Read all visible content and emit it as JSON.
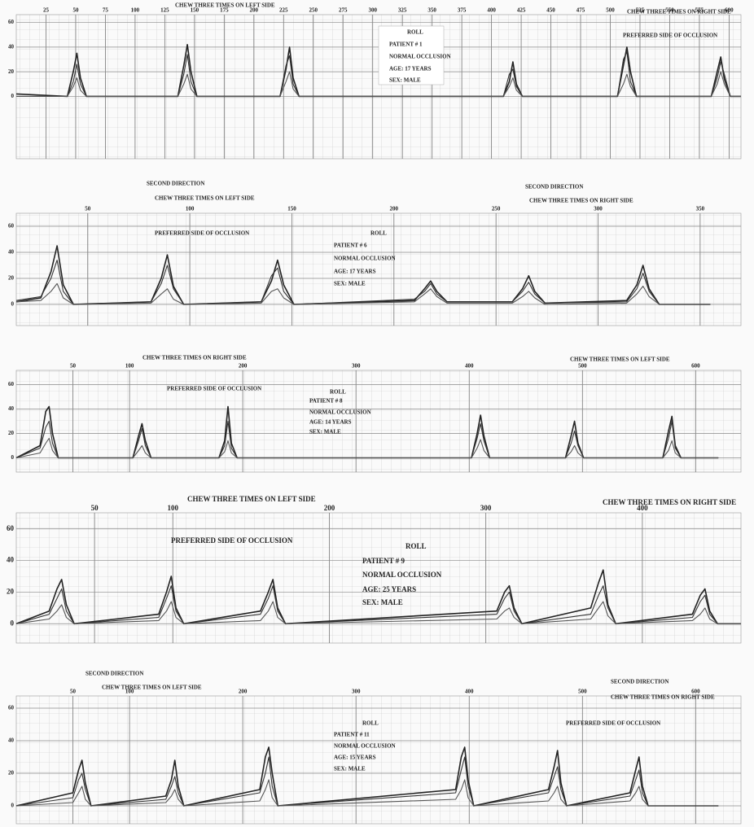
{
  "chart_data": [
    {
      "type": "line",
      "xlim": [
        0,
        610
      ],
      "ylim": [
        -5,
        65
      ],
      "xticks": [
        25,
        50,
        75,
        100,
        125,
        150,
        175,
        200,
        225,
        250,
        275,
        300,
        325,
        350,
        375,
        400,
        425,
        450,
        475,
        500,
        525,
        550,
        575,
        600
      ],
      "yticks": [
        0,
        20,
        40,
        60
      ],
      "annotations": [
        "CHEW THREE TIMES ON LEFT SIDE",
        "CHEW THREE TIMES ON RIGHT SIDE",
        "PREFERRED SIDE OF OCCLUSION",
        "ROLL",
        "PATIENT # 1",
        "NORMAL OCCLUSION",
        "AGE: 17 YEARS",
        "SEX: MALE"
      ],
      "x": [
        0,
        43,
        48,
        51,
        54,
        59,
        136,
        141,
        144,
        147,
        152,
        222,
        227,
        230,
        233,
        238,
        410,
        415,
        418,
        421,
        426,
        506,
        511,
        514,
        517,
        522,
        585,
        590,
        593,
        596,
        601,
        610
      ],
      "series": [
        {
          "color": "#222222",
          "values": [
            2,
            0,
            20,
            35,
            15,
            0,
            0,
            25,
            42,
            20,
            0,
            0,
            22,
            40,
            15,
            0,
            0,
            12,
            28,
            10,
            0,
            0,
            25,
            40,
            20,
            0,
            0,
            20,
            32,
            14,
            0,
            0
          ]
        },
        {
          "color": "#333333",
          "values": [
            0,
            0,
            12,
            26,
            10,
            0,
            0,
            18,
            34,
            12,
            0,
            0,
            25,
            33,
            10,
            0,
            0,
            18,
            22,
            8,
            0,
            0,
            30,
            36,
            12,
            0,
            0,
            15,
            28,
            18,
            0,
            0
          ]
        },
        {
          "color": "#555555",
          "values": [
            0,
            0,
            8,
            15,
            5,
            0,
            0,
            10,
            18,
            6,
            0,
            0,
            12,
            20,
            6,
            0,
            0,
            8,
            15,
            5,
            0,
            0,
            10,
            18,
            8,
            0,
            0,
            10,
            20,
            10,
            0,
            0
          ]
        }
      ]
    },
    {
      "type": "line",
      "xlim": [
        15,
        370
      ],
      "ylim": [
        -5,
        65
      ],
      "xticks": [
        50,
        100,
        150,
        200,
        250,
        300,
        350
      ],
      "yticks": [
        0,
        20,
        40,
        60
      ],
      "annotations": [
        "SECOND DIRECTION",
        "CHEW THREE TIMES ON LEFT SIDE",
        "PREFERRED SIDE OF OCCLUSION",
        "SECOND DIRECTION",
        "CHEW THREE TIMES ON RIGHT SIDE",
        "ROLL",
        "PATIENT # 6",
        "NORMAL OCCLUSION",
        "AGE: 17 YEARS",
        "SEX: MALE"
      ],
      "x": [
        15,
        27,
        32,
        35,
        38,
        43,
        81,
        86,
        89,
        92,
        97,
        135,
        140,
        143,
        146,
        151,
        210,
        215,
        218,
        221,
        226,
        258,
        263,
        266,
        269,
        274,
        314,
        319,
        322,
        325,
        330,
        355
      ],
      "series": [
        {
          "color": "#222222",
          "values": [
            2,
            5,
            25,
            45,
            15,
            0,
            2,
            20,
            38,
            14,
            0,
            2,
            18,
            34,
            15,
            0,
            3,
            12,
            18,
            10,
            2,
            2,
            12,
            22,
            10,
            1,
            3,
            15,
            30,
            12,
            0,
            0
          ]
        },
        {
          "color": "#333333",
          "values": [
            3,
            6,
            20,
            34,
            10,
            0,
            2,
            16,
            30,
            12,
            0,
            2,
            22,
            28,
            10,
            0,
            4,
            10,
            16,
            8,
            2,
            2,
            10,
            17,
            8,
            1,
            2,
            12,
            24,
            10,
            0,
            0
          ]
        },
        {
          "color": "#555555",
          "values": [
            2,
            3,
            10,
            16,
            5,
            0,
            1,
            8,
            12,
            4,
            0,
            1,
            10,
            12,
            5,
            0,
            2,
            8,
            12,
            6,
            1,
            1,
            6,
            10,
            5,
            0,
            1,
            8,
            14,
            6,
            0,
            0
          ]
        }
      ]
    },
    {
      "type": "line",
      "xlim": [
        0,
        640
      ],
      "ylim": [
        -5,
        65
      ],
      "xticks": [
        50,
        100,
        200,
        300,
        400,
        500,
        600
      ],
      "yticks": [
        0,
        20,
        40,
        60
      ],
      "annotations": [
        "CHEW THREE TIMES ON RIGHT SIDE",
        "PREFERRED SIDE OF OCCLUSION",
        "ROLL",
        "PATIENT # 8",
        "NORMAL OCCLUSION",
        "AGE: 14 YEARS",
        "SEX: MALE",
        "CHEW THREE TIMES ON LEFT SIDE"
      ],
      "x": [
        0,
        21,
        26,
        29,
        32,
        37,
        103,
        108,
        111,
        114,
        119,
        179,
        184,
        187,
        190,
        195,
        402,
        407,
        410,
        413,
        418,
        485,
        490,
        493,
        496,
        501,
        571,
        576,
        579,
        582,
        587,
        620
      ],
      "series": [
        {
          "color": "#222222",
          "values": [
            0,
            10,
            38,
            42,
            20,
            0,
            0,
            18,
            28,
            14,
            0,
            0,
            14,
            42,
            12,
            0,
            0,
            20,
            35,
            18,
            0,
            0,
            18,
            30,
            12,
            0,
            0,
            22,
            34,
            10,
            0,
            0
          ]
        },
        {
          "color": "#333333",
          "values": [
            0,
            8,
            25,
            30,
            12,
            0,
            0,
            14,
            24,
            10,
            0,
            0,
            10,
            30,
            8,
            0,
            0,
            16,
            28,
            14,
            0,
            0,
            12,
            22,
            10,
            0,
            0,
            16,
            30,
            8,
            0,
            0
          ]
        },
        {
          "color": "#555555",
          "values": [
            0,
            4,
            12,
            16,
            6,
            0,
            0,
            6,
            10,
            4,
            0,
            0,
            5,
            14,
            4,
            0,
            0,
            8,
            15,
            6,
            0,
            0,
            5,
            10,
            4,
            0,
            0,
            6,
            14,
            4,
            0,
            0
          ]
        }
      ]
    },
    {
      "type": "line",
      "xlim": [
        0,
        463
      ],
      "ylim": [
        -5,
        65
      ],
      "xticks": [
        50,
        100,
        200,
        300,
        400
      ],
      "yticks": [
        0,
        20,
        40,
        60
      ],
      "annotations": [
        "CHEW THREE TIMES ON LEFT SIDE",
        "CHEW THREE TIMES ON RIGHT SIDE",
        "PREFERRED SIDE OF OCCLUSION",
        "ROLL",
        "PATIENT # 9",
        "NORMAL OCCLUSION",
        "AGE: 25 YEARS",
        "SEX: MALE"
      ],
      "x": [
        0,
        21,
        26,
        29,
        32,
        37,
        91,
        96,
        99,
        102,
        107,
        156,
        161,
        164,
        167,
        172,
        307,
        312,
        315,
        318,
        323,
        367,
        372,
        375,
        378,
        383,
        432,
        437,
        440,
        443,
        448,
        463
      ],
      "series": [
        {
          "color": "#222222",
          "values": [
            0,
            8,
            22,
            28,
            12,
            0,
            6,
            20,
            30,
            10,
            0,
            8,
            20,
            28,
            10,
            0,
            8,
            20,
            24,
            10,
            0,
            10,
            26,
            34,
            12,
            0,
            6,
            18,
            22,
            8,
            0,
            0
          ]
        },
        {
          "color": "#333333",
          "values": [
            0,
            6,
            16,
            22,
            8,
            0,
            4,
            16,
            24,
            8,
            0,
            6,
            16,
            24,
            8,
            0,
            6,
            16,
            20,
            8,
            0,
            6,
            18,
            24,
            10,
            0,
            4,
            14,
            18,
            6,
            0,
            0
          ]
        },
        {
          "color": "#555555",
          "values": [
            0,
            3,
            8,
            12,
            4,
            0,
            2,
            8,
            14,
            4,
            0,
            2,
            8,
            14,
            4,
            0,
            3,
            8,
            10,
            4,
            0,
            3,
            10,
            14,
            5,
            0,
            2,
            6,
            10,
            3,
            0,
            0
          ]
        }
      ]
    },
    {
      "type": "line",
      "xlim": [
        0,
        640
      ],
      "ylim": [
        -5,
        65
      ],
      "xticks": [
        50,
        100,
        200,
        300,
        400,
        500,
        600
      ],
      "yticks": [
        0,
        20,
        40,
        60
      ],
      "annotations": [
        "SECOND DIRECTION",
        "CHEW THREE TIMES ON LEFT SIDE",
        "ROLL",
        "PATIENT # 11",
        "NORMAL OCCLUSION",
        "AGE: 15 YEARS",
        "SEX: MALE",
        "SECOND DIRECTION",
        "CHEW THREE TIMES ON RIGHT SIDE",
        "PREFERRED SIDE OF OCCLUSION"
      ],
      "x": [
        0,
        50,
        55,
        58,
        61,
        66,
        132,
        137,
        140,
        143,
        148,
        215,
        220,
        223,
        226,
        231,
        388,
        393,
        396,
        399,
        404,
        470,
        475,
        478,
        481,
        486,
        542,
        547,
        550,
        553,
        558,
        620
      ],
      "series": [
        {
          "color": "#222222",
          "values": [
            0,
            8,
            22,
            28,
            14,
            0,
            6,
            16,
            28,
            12,
            0,
            10,
            30,
            36,
            20,
            0,
            10,
            30,
            36,
            16,
            0,
            10,
            24,
            34,
            14,
            0,
            8,
            22,
            30,
            12,
            0,
            0
          ]
        },
        {
          "color": "#333333",
          "values": [
            0,
            5,
            16,
            20,
            10,
            0,
            4,
            12,
            18,
            8,
            0,
            8,
            20,
            30,
            12,
            0,
            8,
            22,
            30,
            12,
            0,
            8,
            18,
            24,
            10,
            0,
            6,
            16,
            22,
            8,
            0,
            0
          ]
        },
        {
          "color": "#555555",
          "values": [
            0,
            2,
            8,
            12,
            4,
            0,
            2,
            6,
            10,
            4,
            0,
            3,
            10,
            16,
            5,
            0,
            4,
            10,
            16,
            5,
            0,
            3,
            8,
            12,
            4,
            0,
            3,
            8,
            12,
            4,
            0,
            0
          ]
        }
      ]
    }
  ]
}
